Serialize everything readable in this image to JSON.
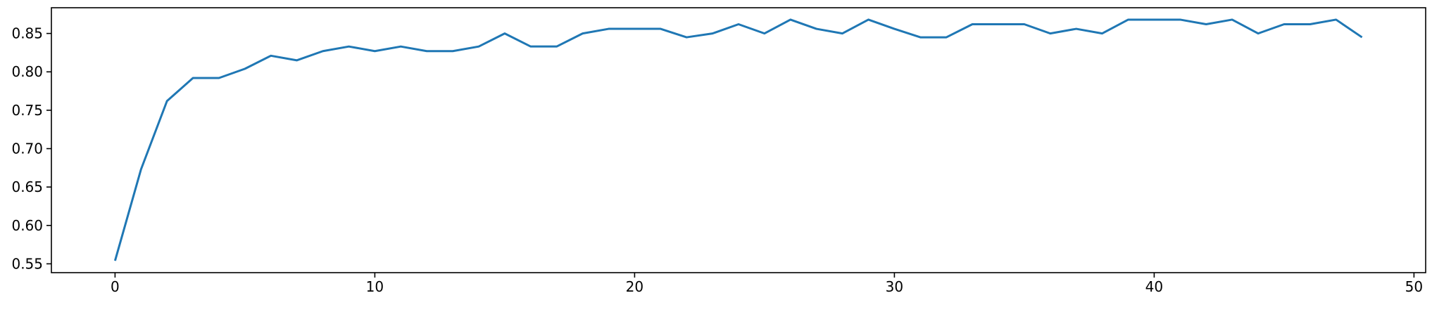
{
  "chart_data": {
    "type": "line",
    "title": "",
    "xlabel": "",
    "ylabel": "",
    "xlim": [
      -2.45,
      50.45
    ],
    "ylim": [
      0.5385,
      0.8835
    ],
    "grid": false,
    "x_ticks": [
      0,
      10,
      20,
      30,
      40,
      50
    ],
    "x_tick_labels": [
      "0",
      "10",
      "20",
      "30",
      "40",
      "50"
    ],
    "y_ticks": [
      0.55,
      0.6,
      0.65,
      0.7,
      0.75,
      0.8,
      0.85
    ],
    "y_tick_labels": [
      "0.55",
      "0.60",
      "0.65",
      "0.70",
      "0.75",
      "0.80",
      "0.85"
    ],
    "series": [
      {
        "color": "#1f77b4",
        "x": [
          0,
          1,
          2,
          3,
          4,
          5,
          6,
          7,
          8,
          9,
          10,
          11,
          12,
          13,
          14,
          15,
          16,
          17,
          18,
          19,
          20,
          21,
          22,
          23,
          24,
          25,
          26,
          27,
          28,
          29,
          30,
          31,
          32,
          33,
          34,
          35,
          36,
          37,
          38,
          39,
          40,
          41,
          42,
          43,
          44,
          45,
          46,
          47,
          48
        ],
        "values": [
          0.554,
          0.673,
          0.762,
          0.792,
          0.792,
          0.804,
          0.821,
          0.815,
          0.827,
          0.833,
          0.827,
          0.833,
          0.827,
          0.827,
          0.833,
          0.85,
          0.833,
          0.833,
          0.85,
          0.856,
          0.856,
          0.856,
          0.845,
          0.85,
          0.862,
          0.85,
          0.868,
          0.856,
          0.85,
          0.868,
          0.856,
          0.845,
          0.845,
          0.862,
          0.862,
          0.862,
          0.85,
          0.856,
          0.85,
          0.868,
          0.868,
          0.868,
          0.862,
          0.868,
          0.85,
          0.862,
          0.862,
          0.868,
          0.845
        ]
      }
    ]
  }
}
